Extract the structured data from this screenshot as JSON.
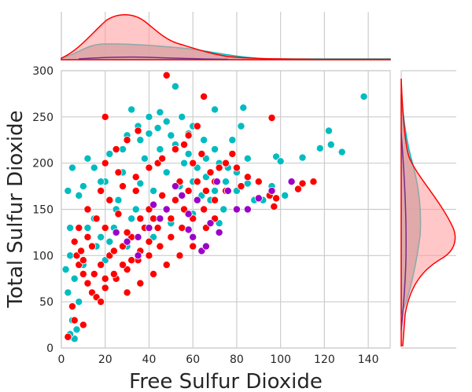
{
  "chart_data": {
    "type": "scatter",
    "subtype": "jointplot-with-kde-marginals",
    "title": "",
    "xlabel": "Free Sulfur Dioxide",
    "ylabel": "Total Sulfur Dioxide",
    "xlim": [
      0,
      150
    ],
    "ylim": [
      0,
      300
    ],
    "xticks": [
      0,
      20,
      40,
      60,
      80,
      100,
      120,
      140
    ],
    "yticks": [
      0,
      50,
      100,
      150,
      200,
      250,
      300
    ],
    "grid": true,
    "legend": "none",
    "colors": {
      "red_group": "#ff0000",
      "cyan_group": "#00bcc0",
      "purple_group": "#9c00c8",
      "kde_red_fill": "#ffb3b3",
      "kde_cyan_fill": "#b0b0b0",
      "kde_purple": "#7a2a8a"
    },
    "series": [
      {
        "color": "#00bcc0",
        "points": [
          [
            138,
            272
          ],
          [
            83,
            260
          ],
          [
            52,
            283
          ],
          [
            70,
            258
          ],
          [
            45,
            255
          ],
          [
            32,
            258
          ],
          [
            122,
            235
          ],
          [
            123,
            220
          ],
          [
            118,
            216
          ],
          [
            128,
            212
          ],
          [
            98,
            207
          ],
          [
            110,
            206
          ],
          [
            100,
            202
          ],
          [
            82,
            240
          ],
          [
            78,
            225
          ],
          [
            85,
            178
          ],
          [
            92,
            160
          ],
          [
            88,
            160
          ],
          [
            96,
            175
          ],
          [
            102,
            165
          ],
          [
            5,
            195
          ],
          [
            3,
            170
          ],
          [
            4,
            130
          ],
          [
            4,
            100
          ],
          [
            2,
            85
          ],
          [
            3,
            60
          ],
          [
            5,
            30
          ],
          [
            6,
            10
          ],
          [
            4,
            15
          ],
          [
            7,
            20
          ],
          [
            8,
            165
          ],
          [
            10,
            175
          ],
          [
            12,
            205
          ],
          [
            15,
            195
          ],
          [
            20,
            180
          ],
          [
            25,
            150
          ],
          [
            18,
            120
          ],
          [
            22,
            210
          ],
          [
            30,
            230
          ],
          [
            35,
            240
          ],
          [
            40,
            232
          ],
          [
            48,
            245
          ],
          [
            55,
            250
          ],
          [
            60,
            240
          ],
          [
            65,
            225
          ],
          [
            70,
            215
          ],
          [
            72,
            200
          ],
          [
            75,
            180
          ],
          [
            68,
            160
          ],
          [
            60,
            145
          ],
          [
            50,
            135
          ],
          [
            42,
            120
          ],
          [
            30,
            110
          ],
          [
            20,
            95
          ],
          [
            12,
            70
          ],
          [
            8,
            50
          ],
          [
            15,
            140
          ],
          [
            28,
            190
          ],
          [
            38,
            205
          ],
          [
            45,
            215
          ],
          [
            52,
            220
          ],
          [
            58,
            210
          ],
          [
            62,
            195
          ],
          [
            66,
            185
          ],
          [
            70,
            170
          ],
          [
            74,
            150
          ],
          [
            80,
            190
          ],
          [
            85,
            205
          ],
          [
            44,
            200
          ],
          [
            36,
            178
          ],
          [
            26,
            160
          ],
          [
            16,
            110
          ],
          [
            10,
            90
          ],
          [
            6,
            75
          ],
          [
            14,
            60
          ],
          [
            24,
            130
          ],
          [
            34,
            150
          ],
          [
            46,
            165
          ],
          [
            54,
            175
          ],
          [
            64,
            165
          ],
          [
            72,
            135
          ],
          [
            40,
            250
          ],
          [
            50,
            230
          ],
          [
            56,
            200
          ],
          [
            60,
            180
          ],
          [
            48,
            190
          ],
          [
            42,
            170
          ],
          [
            32,
            140
          ],
          [
            22,
            115
          ],
          [
            12,
            130
          ],
          [
            18,
            180
          ],
          [
            28,
            215
          ],
          [
            36,
            225
          ],
          [
            44,
            238
          ],
          [
            58,
            232
          ],
          [
            66,
            205
          ],
          [
            76,
            195
          ],
          [
            80,
            170
          ]
        ]
      },
      {
        "color": "#ff0000",
        "points": [
          [
            48,
            295
          ],
          [
            65,
            272
          ],
          [
            20,
            250
          ],
          [
            96,
            249
          ],
          [
            75,
            200
          ],
          [
            80,
            195
          ],
          [
            85,
            185
          ],
          [
            90,
            180
          ],
          [
            95,
            165
          ],
          [
            98,
            162
          ],
          [
            97,
            153
          ],
          [
            110,
            178
          ],
          [
            108,
            172
          ],
          [
            115,
            180
          ],
          [
            7,
            100
          ],
          [
            8,
            90
          ],
          [
            10,
            80
          ],
          [
            12,
            70
          ],
          [
            14,
            60
          ],
          [
            16,
            55
          ],
          [
            5,
            45
          ],
          [
            6,
            30
          ],
          [
            10,
            25
          ],
          [
            3,
            12
          ],
          [
            18,
            50
          ],
          [
            20,
            65
          ],
          [
            25,
            75
          ],
          [
            30,
            85
          ],
          [
            35,
            95
          ],
          [
            40,
            100
          ],
          [
            45,
            110
          ],
          [
            50,
            120
          ],
          [
            55,
            130
          ],
          [
            60,
            140
          ],
          [
            65,
            150
          ],
          [
            70,
            160
          ],
          [
            75,
            170
          ],
          [
            22,
            100
          ],
          [
            28,
            110
          ],
          [
            32,
            120
          ],
          [
            38,
            130
          ],
          [
            42,
            140
          ],
          [
            48,
            150
          ],
          [
            52,
            160
          ],
          [
            58,
            170
          ],
          [
            62,
            180
          ],
          [
            68,
            190
          ],
          [
            72,
            195
          ],
          [
            15,
            80
          ],
          [
            18,
            90
          ],
          [
            24,
            105
          ],
          [
            30,
            125
          ],
          [
            36,
            140
          ],
          [
            40,
            150
          ],
          [
            46,
            165
          ],
          [
            54,
            180
          ],
          [
            60,
            200
          ],
          [
            64,
            210
          ],
          [
            56,
            220
          ],
          [
            44,
            200
          ],
          [
            34,
            170
          ],
          [
            26,
            145
          ],
          [
            20,
            130
          ],
          [
            14,
            110
          ],
          [
            10,
            95
          ],
          [
            12,
            120
          ],
          [
            16,
            140
          ],
          [
            22,
            160
          ],
          [
            28,
            175
          ],
          [
            34,
            185
          ],
          [
            40,
            195
          ],
          [
            46,
            205
          ],
          [
            52,
            215
          ],
          [
            58,
            230
          ],
          [
            62,
            240
          ],
          [
            30,
            60
          ],
          [
            36,
            70
          ],
          [
            42,
            80
          ],
          [
            48,
            90
          ],
          [
            54,
            100
          ],
          [
            60,
            110
          ],
          [
            20,
            200
          ],
          [
            25,
            215
          ],
          [
            30,
            225
          ],
          [
            35,
            235
          ],
          [
            26,
            190
          ],
          [
            18,
            170
          ],
          [
            12,
            150
          ],
          [
            8,
            130
          ],
          [
            6,
            115
          ],
          [
            9,
            105
          ],
          [
            44,
            130
          ],
          [
            50,
            140
          ],
          [
            56,
            150
          ],
          [
            62,
            160
          ],
          [
            66,
            170
          ],
          [
            70,
            180
          ],
          [
            78,
            210
          ],
          [
            82,
            175
          ],
          [
            40,
            115
          ],
          [
            36,
            105
          ],
          [
            32,
            95
          ],
          [
            28,
            90
          ],
          [
            24,
            80
          ],
          [
            20,
            75
          ],
          [
            70,
            140
          ],
          [
            66,
            130
          ]
        ]
      },
      {
        "color": "#9c00c8",
        "points": [
          [
            105,
            180
          ],
          [
            96,
            170
          ],
          [
            90,
            162
          ],
          [
            80,
            150
          ],
          [
            71,
            180
          ],
          [
            72,
            125
          ],
          [
            68,
            135
          ],
          [
            64,
            105
          ],
          [
            62,
            160
          ],
          [
            58,
            145
          ],
          [
            55,
            165
          ],
          [
            48,
            150
          ],
          [
            45,
            140
          ],
          [
            40,
            130
          ],
          [
            35,
            120
          ],
          [
            30,
            115
          ],
          [
            25,
            125
          ],
          [
            52,
            175
          ],
          [
            60,
            120
          ],
          [
            42,
            155
          ],
          [
            35,
            100
          ],
          [
            85,
            150
          ],
          [
            76,
            170
          ],
          [
            58,
            128
          ],
          [
            66,
            110
          ]
        ]
      }
    ]
  }
}
